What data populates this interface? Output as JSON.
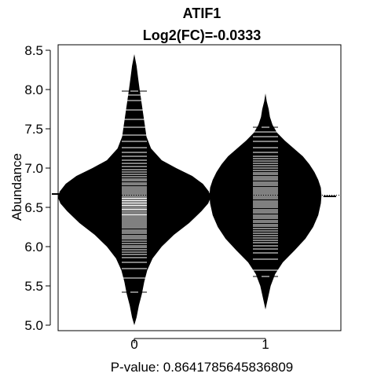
{
  "chart_data": {
    "type": "beanplot",
    "title": "ATIF1",
    "subtitle": "Log2(FC)=-0.0333",
    "xlabel": "P-value: 0.8641785645836809",
    "ylabel": "Abundance",
    "ylim": [
      4.93,
      8.57
    ],
    "yticks": [
      5.0,
      5.5,
      6.0,
      6.5,
      7.0,
      7.5,
      8.0,
      8.5
    ],
    "ytick_labels": [
      "5.0",
      "5.5",
      "6.0",
      "6.5",
      "7.0",
      "7.5",
      "8.0",
      "8.5"
    ],
    "categories": [
      "0",
      "1"
    ],
    "overall_mean": 6.655,
    "colors": {
      "bean_fill": "#000000",
      "data_lines": "#ffffff",
      "background": "#ffffff"
    },
    "groups": [
      {
        "category": "0",
        "mean": 6.67,
        "density": [
          [
            5.0,
            0.0
          ],
          [
            5.1,
            0.03
          ],
          [
            5.25,
            0.06
          ],
          [
            5.4,
            0.1
          ],
          [
            5.55,
            0.13
          ],
          [
            5.7,
            0.17
          ],
          [
            5.85,
            0.24
          ],
          [
            6.0,
            0.36
          ],
          [
            6.15,
            0.52
          ],
          [
            6.3,
            0.72
          ],
          [
            6.45,
            0.88
          ],
          [
            6.55,
            0.97
          ],
          [
            6.62,
            1.0
          ],
          [
            6.7,
            0.98
          ],
          [
            6.8,
            0.9
          ],
          [
            6.9,
            0.76
          ],
          [
            7.0,
            0.55
          ],
          [
            7.1,
            0.36
          ],
          [
            7.25,
            0.22
          ],
          [
            7.4,
            0.16
          ],
          [
            7.6,
            0.13
          ],
          [
            7.8,
            0.1
          ],
          [
            8.0,
            0.07
          ],
          [
            8.15,
            0.05
          ],
          [
            8.3,
            0.03
          ],
          [
            8.45,
            0.0
          ]
        ],
        "values": [
          5.42,
          5.6,
          5.72,
          5.8,
          5.86,
          5.9,
          5.93,
          5.96,
          5.99,
          6.01,
          6.04,
          6.07,
          6.1,
          6.12,
          6.14,
          6.17,
          6.19,
          6.21,
          6.24,
          6.26,
          6.28,
          6.3,
          6.32,
          6.34,
          6.36,
          6.38,
          6.4,
          6.41,
          6.43,
          6.45,
          6.47,
          6.48,
          6.5,
          6.52,
          6.53,
          6.55,
          6.56,
          6.58,
          6.59,
          6.61,
          6.62,
          6.64,
          6.66,
          6.68,
          6.7,
          6.72,
          6.74,
          6.76,
          6.79,
          6.81,
          6.84,
          6.86,
          6.89,
          6.92,
          6.95,
          6.98,
          7.02,
          7.06,
          7.1,
          7.15,
          7.2,
          7.26,
          7.34,
          7.42,
          7.52,
          7.62,
          7.74,
          7.86,
          7.93,
          7.98
        ]
      },
      {
        "category": "1",
        "mean": 6.64,
        "density": [
          [
            5.2,
            0.0
          ],
          [
            5.35,
            0.04
          ],
          [
            5.5,
            0.08
          ],
          [
            5.65,
            0.15
          ],
          [
            5.8,
            0.27
          ],
          [
            5.95,
            0.45
          ],
          [
            6.1,
            0.62
          ],
          [
            6.25,
            0.74
          ],
          [
            6.4,
            0.82
          ],
          [
            6.55,
            0.86
          ],
          [
            6.65,
            0.87
          ],
          [
            6.75,
            0.86
          ],
          [
            6.85,
            0.82
          ],
          [
            6.95,
            0.76
          ],
          [
            7.05,
            0.68
          ],
          [
            7.15,
            0.58
          ],
          [
            7.25,
            0.44
          ],
          [
            7.35,
            0.3
          ],
          [
            7.45,
            0.18
          ],
          [
            7.55,
            0.11
          ],
          [
            7.65,
            0.07
          ],
          [
            7.75,
            0.05
          ],
          [
            7.85,
            0.02
          ],
          [
            7.95,
            0.0
          ]
        ],
        "values": [
          5.62,
          5.7,
          5.84,
          5.92,
          5.97,
          6.01,
          6.05,
          6.08,
          6.11,
          6.14,
          6.17,
          6.2,
          6.23,
          6.26,
          6.28,
          6.31,
          6.33,
          6.36,
          6.38,
          6.4,
          6.43,
          6.45,
          6.47,
          6.5,
          6.52,
          6.54,
          6.56,
          6.58,
          6.61,
          6.63,
          6.65,
          6.67,
          6.69,
          6.71,
          6.73,
          6.75,
          6.78,
          6.8,
          6.82,
          6.85,
          6.87,
          6.89,
          6.92,
          6.94,
          6.97,
          7.0,
          7.03,
          7.06,
          7.09,
          7.12,
          7.15,
          7.2,
          7.26,
          7.34,
          7.4,
          7.46,
          7.52
        ]
      }
    ]
  }
}
